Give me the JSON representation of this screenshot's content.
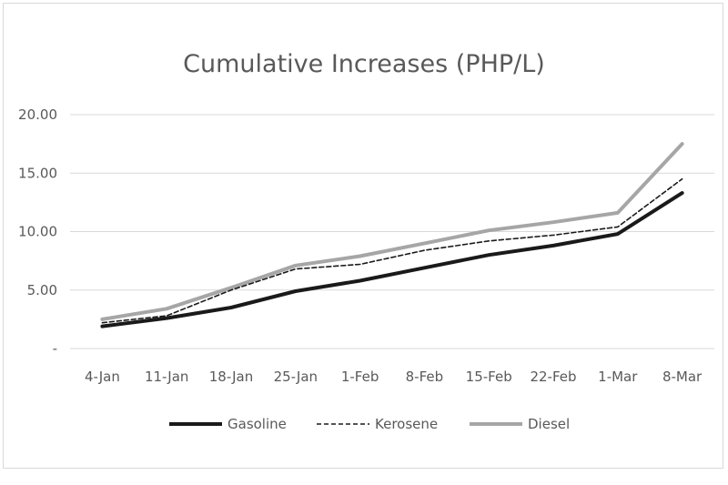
{
  "chart_data": {
    "type": "line",
    "title": "Cumulative Increases (PHP/L)",
    "categories": [
      "4-Jan",
      "11-Jan",
      "18-Jan",
      "25-Jan",
      "1-Feb",
      "8-Feb",
      "15-Feb",
      "22-Feb",
      "1-Mar",
      "8-Mar"
    ],
    "y_tick_labels": [
      "-",
      "5.00",
      "10.00",
      "15.00",
      "20.00"
    ],
    "y_ticks": [
      0,
      5,
      10,
      15,
      20
    ],
    "ylim": [
      0,
      20
    ],
    "grid": true,
    "legend_position": "bottom",
    "series": [
      {
        "name": "Gasoline",
        "color": "#1a1a1a",
        "style": "solid-thick",
        "values": [
          1.9,
          2.6,
          3.5,
          4.9,
          5.8,
          6.9,
          8.0,
          8.8,
          9.8,
          13.3
        ]
      },
      {
        "name": "Kerosene",
        "color": "#1a1a1a",
        "style": "dashed",
        "values": [
          2.2,
          2.8,
          5.0,
          6.8,
          7.2,
          8.4,
          9.2,
          9.7,
          10.4,
          14.5
        ]
      },
      {
        "name": "Diesel",
        "color": "#a6a6a6",
        "style": "solid-thick",
        "values": [
          2.5,
          3.4,
          5.2,
          7.1,
          7.9,
          9.0,
          10.1,
          10.8,
          11.6,
          17.5
        ]
      }
    ]
  }
}
